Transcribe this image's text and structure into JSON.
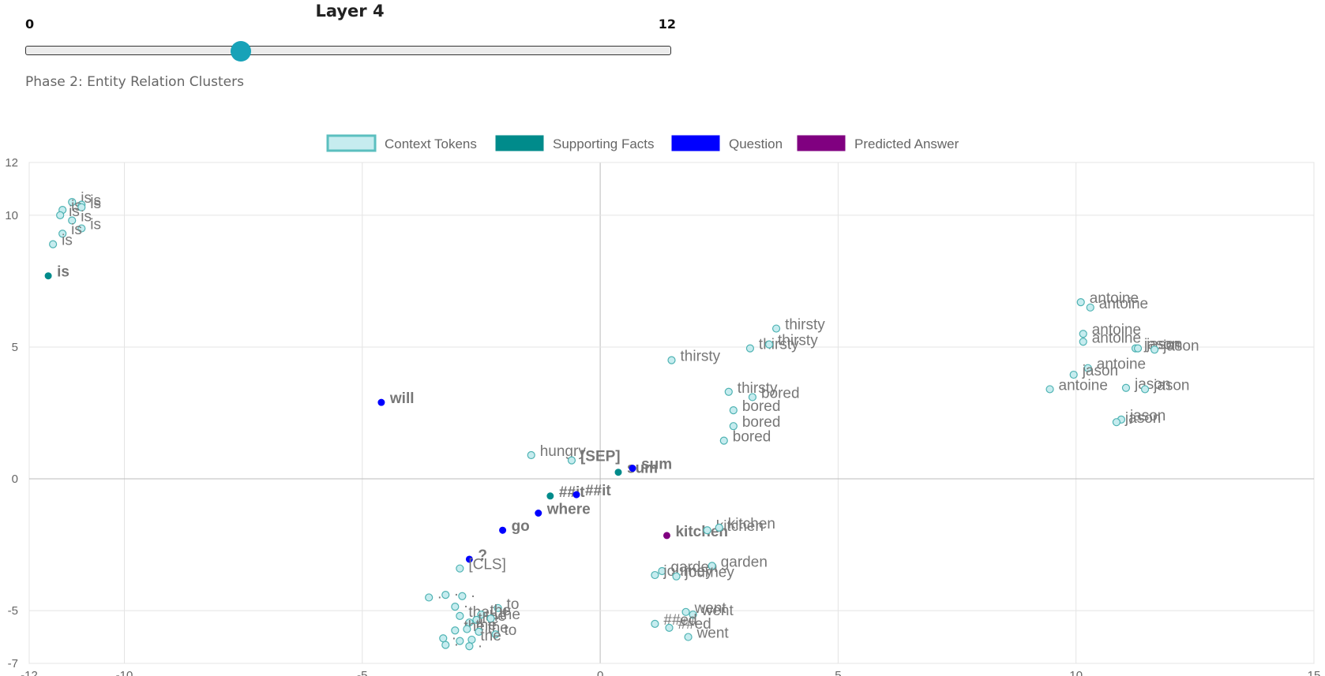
{
  "slider": {
    "title": "Layer 4",
    "min_label": "0",
    "max_label": "12",
    "min": 0,
    "max": 12,
    "value": 4,
    "phase": "Phase 2: Entity Relation Clusters"
  },
  "chart_data": {
    "type": "scatter",
    "xlim": [
      -12,
      15
    ],
    "ylim": [
      -7,
      12
    ],
    "x_ticks": [
      -12,
      -10,
      -5,
      0,
      5,
      10,
      15
    ],
    "y_ticks": [
      12,
      10,
      5,
      0,
      -5,
      -7
    ],
    "grid": true,
    "legend_position": "top-center",
    "legend": [
      {
        "key": "context",
        "label": "Context Tokens",
        "fill": "#c6ecef",
        "stroke": "#5bbfbf"
      },
      {
        "key": "support",
        "label": "Supporting Facts",
        "fill": "#008b8b",
        "stroke": "#008b8b"
      },
      {
        "key": "question",
        "label": "Question",
        "fill": "#0000ff",
        "stroke": "#0000ff"
      },
      {
        "key": "answer",
        "label": "Predicted Answer",
        "fill": "#800080",
        "stroke": "#800080"
      }
    ],
    "points": [
      {
        "x": -11.1,
        "y": 10.5,
        "label": "is",
        "group": "context"
      },
      {
        "x": -10.9,
        "y": 10.4,
        "label": "is",
        "group": "context"
      },
      {
        "x": -11.3,
        "y": 10.2,
        "label": "is",
        "group": "context"
      },
      {
        "x": -10.9,
        "y": 10.3,
        "label": "is",
        "group": "context"
      },
      {
        "x": -11.35,
        "y": 10.0,
        "label": "is",
        "group": "context"
      },
      {
        "x": -11.1,
        "y": 9.8,
        "label": "is",
        "group": "context"
      },
      {
        "x": -10.9,
        "y": 9.5,
        "label": "is",
        "group": "context"
      },
      {
        "x": -11.3,
        "y": 9.3,
        "label": "is",
        "group": "context"
      },
      {
        "x": -11.5,
        "y": 8.9,
        "label": "is",
        "group": "context"
      },
      {
        "x": -11.6,
        "y": 7.7,
        "label": "is",
        "group": "support"
      },
      {
        "x": 3.7,
        "y": 5.7,
        "label": "thirsty",
        "group": "context"
      },
      {
        "x": 3.15,
        "y": 4.95,
        "label": "thirsty",
        "group": "context"
      },
      {
        "x": 3.55,
        "y": 5.1,
        "label": "thirsty",
        "group": "context"
      },
      {
        "x": 1.5,
        "y": 4.5,
        "label": "thirsty",
        "group": "context"
      },
      {
        "x": 2.7,
        "y": 3.3,
        "label": "thirsty",
        "group": "context"
      },
      {
        "x": 3.2,
        "y": 3.1,
        "label": "bored",
        "group": "context"
      },
      {
        "x": 2.8,
        "y": 2.6,
        "label": "bored",
        "group": "context"
      },
      {
        "x": 2.8,
        "y": 2.0,
        "label": "bored",
        "group": "context"
      },
      {
        "x": 2.6,
        "y": 1.45,
        "label": "bored",
        "group": "context"
      },
      {
        "x": 10.1,
        "y": 6.7,
        "label": "antoine",
        "group": "context"
      },
      {
        "x": 10.3,
        "y": 6.5,
        "label": "antoine",
        "group": "context"
      },
      {
        "x": 10.15,
        "y": 5.5,
        "label": "antoine",
        "group": "context"
      },
      {
        "x": 10.15,
        "y": 5.2,
        "label": "antoine",
        "group": "context"
      },
      {
        "x": 10.25,
        "y": 4.2,
        "label": "antoine",
        "group": "context"
      },
      {
        "x": 9.45,
        "y": 3.4,
        "label": "antoine",
        "group": "context"
      },
      {
        "x": 11.25,
        "y": 4.95,
        "label": "jason",
        "group": "context"
      },
      {
        "x": 11.3,
        "y": 4.95,
        "label": "jason",
        "group": "context"
      },
      {
        "x": 11.65,
        "y": 4.9,
        "label": "jason",
        "group": "context"
      },
      {
        "x": 9.95,
        "y": 3.95,
        "label": "jason",
        "group": "context"
      },
      {
        "x": 11.05,
        "y": 3.45,
        "label": "jason",
        "group": "context"
      },
      {
        "x": 11.45,
        "y": 3.4,
        "label": "jason",
        "group": "context"
      },
      {
        "x": 10.95,
        "y": 2.25,
        "label": "jason",
        "group": "context"
      },
      {
        "x": 10.85,
        "y": 2.15,
        "label": "jason",
        "group": "context"
      },
      {
        "x": -4.6,
        "y": 2.9,
        "label": "will",
        "group": "question"
      },
      {
        "x": -1.45,
        "y": 0.9,
        "label": "hungry",
        "group": "context"
      },
      {
        "x": -0.6,
        "y": 0.7,
        "label": "[SEP]",
        "group": "context",
        "bold": true
      },
      {
        "x": 0.38,
        "y": 0.25,
        "label": "sum",
        "group": "support"
      },
      {
        "x": 0.68,
        "y": 0.4,
        "label": "sum",
        "group": "question"
      },
      {
        "x": -1.05,
        "y": -0.65,
        "label": "##it",
        "group": "support"
      },
      {
        "x": -0.5,
        "y": -0.6,
        "label": "##it",
        "group": "question"
      },
      {
        "x": -1.3,
        "y": -1.3,
        "label": "where",
        "group": "question"
      },
      {
        "x": -2.05,
        "y": -1.95,
        "label": "go",
        "group": "question"
      },
      {
        "x": 1.4,
        "y": -2.15,
        "label": "kitchen",
        "group": "answer"
      },
      {
        "x": 2.25,
        "y": -1.95,
        "label": "kitchen",
        "group": "context"
      },
      {
        "x": 2.5,
        "y": -1.85,
        "label": "kitchen",
        "group": "context"
      },
      {
        "x": -2.75,
        "y": -3.05,
        "label": "?",
        "group": "question"
      },
      {
        "x": -2.95,
        "y": -3.4,
        "label": "[CLS]",
        "group": "context"
      },
      {
        "x": 1.3,
        "y": -3.5,
        "label": "garden",
        "group": "context"
      },
      {
        "x": 2.35,
        "y": -3.3,
        "label": "garden",
        "group": "context"
      },
      {
        "x": 1.15,
        "y": -3.65,
        "label": "journey",
        "group": "context"
      },
      {
        "x": 1.6,
        "y": -3.7,
        "label": "journey",
        "group": "context"
      },
      {
        "x": 1.8,
        "y": -5.05,
        "label": "went",
        "group": "context"
      },
      {
        "x": 1.95,
        "y": -5.15,
        "label": "went",
        "group": "context"
      },
      {
        "x": 1.15,
        "y": -5.5,
        "label": "##ed",
        "group": "context"
      },
      {
        "x": 1.45,
        "y": -5.65,
        "label": "##ed",
        "group": "context"
      },
      {
        "x": 1.85,
        "y": -6.0,
        "label": "went",
        "group": "context"
      },
      {
        "x": -3.6,
        "y": -4.5,
        "label": ".",
        "group": "context"
      },
      {
        "x": -3.25,
        "y": -4.4,
        "label": ".",
        "group": "context"
      },
      {
        "x": -2.9,
        "y": -4.45,
        "label": ".",
        "group": "context"
      },
      {
        "x": -3.05,
        "y": -4.85,
        "label": ".",
        "group": "context"
      },
      {
        "x": -2.15,
        "y": -4.9,
        "label": "to",
        "group": "context"
      },
      {
        "x": -2.95,
        "y": -5.2,
        "label": "the",
        "group": "context"
      },
      {
        "x": -2.5,
        "y": -5.15,
        "label": "the",
        "group": "context"
      },
      {
        "x": -2.6,
        "y": -5.35,
        "label": "the",
        "group": "context"
      },
      {
        "x": -2.75,
        "y": -5.45,
        "label": "the",
        "group": "context"
      },
      {
        "x": -2.3,
        "y": -5.3,
        "label": "the",
        "group": "context"
      },
      {
        "x": -3.05,
        "y": -5.75,
        "label": "the",
        "group": "context"
      },
      {
        "x": -2.8,
        "y": -5.7,
        "label": "the",
        "group": "context"
      },
      {
        "x": -2.55,
        "y": -5.8,
        "label": "the",
        "group": "context"
      },
      {
        "x": -2.2,
        "y": -5.9,
        "label": "to",
        "group": "context"
      },
      {
        "x": -3.3,
        "y": -6.05,
        "label": ".",
        "group": "context"
      },
      {
        "x": -2.95,
        "y": -6.15,
        "label": ".",
        "group": "context"
      },
      {
        "x": -2.7,
        "y": -6.1,
        "label": "the",
        "group": "context"
      },
      {
        "x": -3.25,
        "y": -6.3,
        "label": ".",
        "group": "context"
      },
      {
        "x": -2.75,
        "y": -6.35,
        "label": ".",
        "group": "context"
      }
    ]
  }
}
